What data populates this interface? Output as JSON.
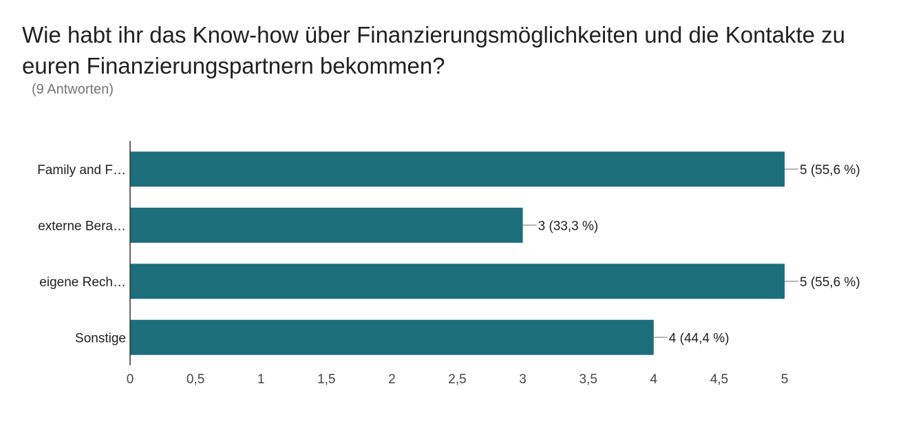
{
  "header": {
    "title": "Wie habt ihr das Know-how über Finanzierungsmöglichkeiten und die Kontakte zu euren Finanzierungspartnern bekommen?",
    "subtitle": "(9 Antworten)"
  },
  "chart_data": {
    "type": "bar",
    "orientation": "horizontal",
    "categories": [
      "Family and F…",
      "externe Bera…",
      "eigene Rech…",
      "Sonstige"
    ],
    "values": [
      5,
      3,
      5,
      4
    ],
    "value_labels": [
      "5 (55,6 %)",
      "3 (33,3 %)",
      "5 (55,6 %)",
      "4 (44,4 %)"
    ],
    "xlim": [
      0,
      5
    ],
    "x_ticks": [
      0,
      0.5,
      1,
      1.5,
      2,
      2.5,
      3,
      3.5,
      4,
      4.5,
      5
    ],
    "x_tick_labels": [
      "0",
      "0,5",
      "1",
      "1,5",
      "2",
      "2,5",
      "3",
      "3,5",
      "4",
      "4,5",
      "5"
    ],
    "bar_color": "#1c6f7a",
    "grid": false,
    "legend": "none"
  }
}
